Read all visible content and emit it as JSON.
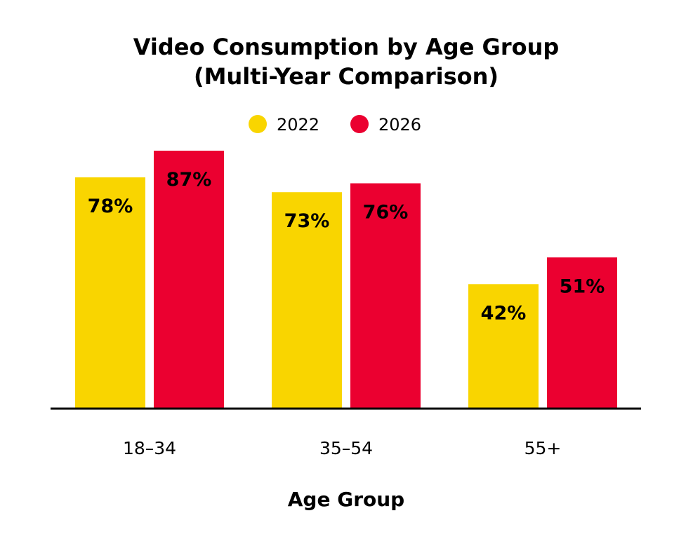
{
  "chart_data": {
    "type": "bar",
    "title_lines": [
      "Video Consumption by Age Group",
      "(Multi-Year Comparison)"
    ],
    "xlabel": "Age Group",
    "ylabel": "",
    "categories": [
      "18–34",
      "35–54",
      "55+"
    ],
    "series": [
      {
        "name": "2022",
        "color": "#F9D500",
        "values": [
          78,
          73,
          42
        ],
        "labels": [
          "78%",
          "73%",
          "42%"
        ]
      },
      {
        "name": "2026",
        "color": "#EB0030",
        "values": [
          87,
          76,
          51
        ],
        "labels": [
          "87%",
          "76%",
          "51%"
        ]
      }
    ],
    "ylim": [
      0,
      100
    ],
    "legend_position": "top-center",
    "grid": false
  }
}
